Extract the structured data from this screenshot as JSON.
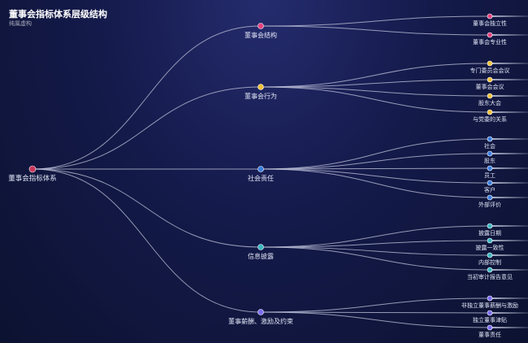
{
  "title": "董事会指标体系层级结构",
  "subtitle": "纯属虚构",
  "tree": {
    "name": "董事会指标体系",
    "color": "#c8355a",
    "children": [
      {
        "name": "董事会结构",
        "color": "#e8407f",
        "children": [
          "董事会独立性",
          "董事会专业性"
        ]
      },
      {
        "name": "董事会行为",
        "color": "#f2c23a",
        "children": [
          "专门委员会会议",
          "董事会会议",
          "股东大会",
          "与党委的关系"
        ]
      },
      {
        "name": "社会责任",
        "color": "#3b7fe0",
        "children": [
          "社会",
          "股东",
          "员工",
          "客户",
          "外部评价"
        ]
      },
      {
        "name": "信息披露",
        "color": "#3bb8c2",
        "children": [
          "披露日期",
          "披露一致性",
          "内部控制",
          "当初审计报告意见"
        ]
      },
      {
        "name": "董事薪酬、激励及约束",
        "color": "#7c6cf2",
        "children": [
          "非独立董事薪酬与激励",
          "独立董事津贴",
          "董事责任"
        ]
      }
    ]
  }
}
